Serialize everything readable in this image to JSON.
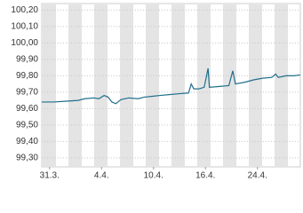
{
  "chart_data": {
    "type": "line",
    "x": [
      -0.6,
      0.3,
      1.3,
      2.2,
      2.7,
      3.4,
      3.8,
      4.2,
      4.5,
      4.8,
      5.1,
      5.5,
      6.1,
      6.8,
      7.3,
      7.9,
      8.5,
      9.2,
      9.9,
      10.7,
      10.9,
      11.1,
      11.5,
      11.9,
      12.2,
      12.3,
      13.1,
      13.8,
      14.1,
      14.3,
      15.0,
      15.7,
      16.4,
      17.1,
      17.4,
      17.6,
      18.2,
      18.8,
      19.3
    ],
    "series": [
      {
        "color": "#1f6f8b",
        "values": [
          99.64,
          99.64,
          99.645,
          99.65,
          99.66,
          99.665,
          99.66,
          99.68,
          99.67,
          99.64,
          99.63,
          99.655,
          99.665,
          99.66,
          99.67,
          99.675,
          99.68,
          99.685,
          99.69,
          99.695,
          99.75,
          99.72,
          99.72,
          99.73,
          99.845,
          99.73,
          99.735,
          99.74,
          99.83,
          99.75,
          99.76,
          99.775,
          99.785,
          99.79,
          99.81,
          99.79,
          99.8,
          99.8,
          99.805
        ]
      }
    ],
    "xlim": [
      -0.6,
      19.3
    ],
    "xticks": [
      {
        "value": 0,
        "label": "31.3."
      },
      {
        "value": 4,
        "label": "4.4."
      },
      {
        "value": 8,
        "label": "10.4."
      },
      {
        "value": 12,
        "label": "16.4."
      },
      {
        "value": 16,
        "label": "24.4."
      }
    ],
    "ylim": [
      99.245,
      100.24
    ],
    "yticks": [
      {
        "value": 99.3,
        "label": "99,30"
      },
      {
        "value": 99.4,
        "label": "99,40"
      },
      {
        "value": 99.5,
        "label": "99,50"
      },
      {
        "value": 99.6,
        "label": "99,60"
      },
      {
        "value": 99.7,
        "label": "99,70"
      },
      {
        "value": 99.8,
        "label": "99,80"
      },
      {
        "value": 99.9,
        "label": "99,90"
      },
      {
        "value": 100.0,
        "label": "100,00"
      },
      {
        "value": 100.1,
        "label": "100,10"
      },
      {
        "value": 100.2,
        "label": "100,20"
      }
    ],
    "grid": true
  }
}
